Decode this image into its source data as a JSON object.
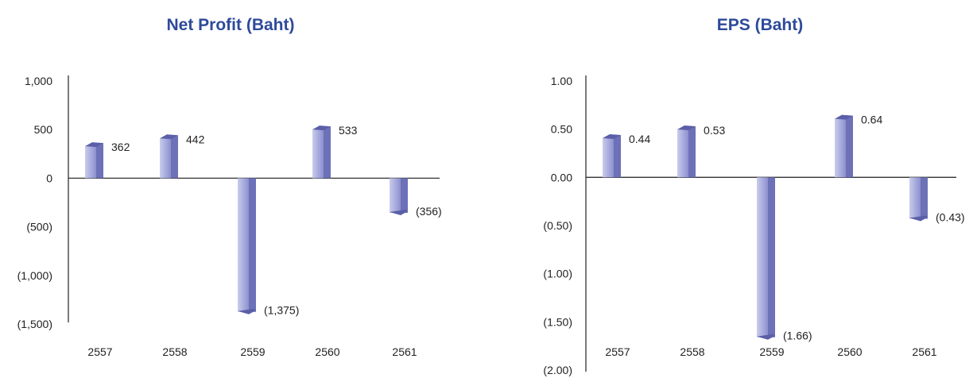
{
  "colors": {
    "title": "#2e4a9a",
    "bar_front_light": "#c9ccec",
    "bar_front_dark": "#8c90cf",
    "bar_side": "#6c71b8",
    "bar_cap": "#5a5fa8",
    "axis": "#333333"
  },
  "chart_data": [
    {
      "type": "bar",
      "title": "Net Profit (Baht)",
      "categories": [
        "2557",
        "2558",
        "2559",
        "2560",
        "2561"
      ],
      "values": [
        362,
        442,
        -1375,
        533,
        -356
      ],
      "value_labels": [
        "362",
        "442",
        "(1,375)",
        "533",
        "(356)"
      ],
      "yticks": [
        1000,
        500,
        0,
        -500,
        -1000,
        -1500
      ],
      "ytick_labels": [
        "1,000",
        "500",
        "0",
        "(500)",
        "(1,000)",
        "(1,500)"
      ],
      "ylim": [
        -1500,
        1000
      ],
      "grid": false,
      "legend": "none"
    },
    {
      "type": "bar",
      "title": "EPS (Baht)",
      "categories": [
        "2557",
        "2558",
        "2559",
        "2560",
        "2561"
      ],
      "values": [
        0.44,
        0.53,
        -1.66,
        0.64,
        -0.43
      ],
      "value_labels": [
        "0.44",
        "0.53",
        "(1.66)",
        "0.64",
        "(0.43)"
      ],
      "yticks": [
        1.0,
        0.5,
        0.0,
        -0.5,
        -1.0,
        -1.5,
        -2.0
      ],
      "ytick_labels": [
        "1.00",
        "0.50",
        "0.00",
        "(0.50)",
        "(1.00)",
        "(1.50)",
        "(2.00)"
      ],
      "ylim": [
        -2.0,
        1.0
      ],
      "grid": false,
      "legend": "none"
    }
  ]
}
